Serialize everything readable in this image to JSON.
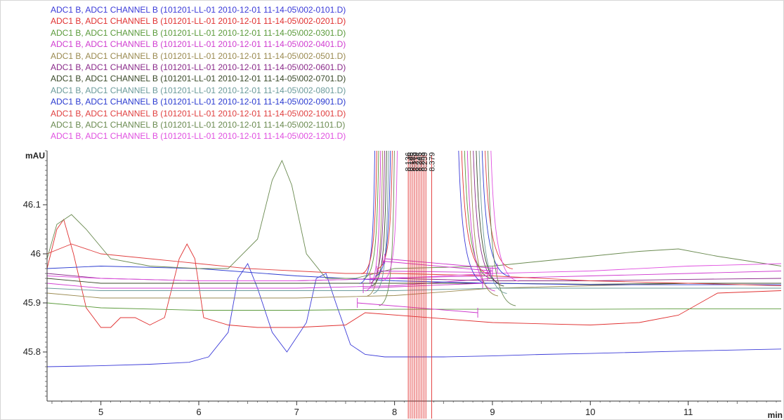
{
  "chart_data": {
    "type": "line",
    "xlabel": "min",
    "ylabel": "mAU",
    "xlim": [
      4.45,
      11.95
    ],
    "ylim": [
      45.7,
      46.21
    ],
    "x_ticks": [
      5,
      6,
      7,
      8,
      9,
      10,
      11
    ],
    "y_ticks": [
      45.8,
      45.9,
      46,
      46.1
    ],
    "grid": false,
    "legend_position": "top-left",
    "series": [
      {
        "name": "ADC1 B, ADC1 CHANNEL B (101201-LL-01 2010-12-01 11-14-05\\002-0101.D)",
        "color": "#3a3ad8",
        "x": [
          4.45,
          5,
          5.5,
          5.9,
          6.1,
          6.3,
          6.4,
          6.5,
          6.6,
          6.75,
          6.9,
          7.1,
          7.2,
          7.3,
          7.4,
          7.55,
          7.7,
          7.9,
          8.5,
          9,
          9.5,
          10,
          11,
          11.95
        ],
        "y": [
          45.77,
          45.772,
          45.775,
          45.779,
          45.79,
          45.84,
          45.95,
          45.98,
          45.93,
          45.84,
          45.8,
          45.86,
          45.95,
          45.96,
          45.9,
          45.815,
          45.795,
          45.79,
          45.79,
          45.792,
          45.795,
          45.797,
          45.802,
          45.806
        ]
      },
      {
        "name": "ADC1 B, ADC1 CHANNEL B (101201-LL-01 2010-12-01 11-14-05\\002-0201.D)",
        "color": "#e03030",
        "x": [
          4.45,
          4.55,
          4.62,
          4.72,
          4.85,
          5,
          5.1,
          5.2,
          5.35,
          5.5,
          5.65,
          5.8,
          5.88,
          5.96,
          6.05,
          6.3,
          6.6,
          7,
          7.5,
          7.7,
          9,
          10,
          10.5,
          10.9,
          11.3,
          11.95
        ],
        "y": [
          45.97,
          46.05,
          46.07,
          46.0,
          45.89,
          45.85,
          45.85,
          45.87,
          45.87,
          45.855,
          45.87,
          45.99,
          46.02,
          45.99,
          45.87,
          45.855,
          45.85,
          45.85,
          45.855,
          45.88,
          45.86,
          45.855,
          45.86,
          45.875,
          45.92,
          45.925
        ]
      },
      {
        "name": "ADC1 B, ADC1 CHANNEL B (101201-LL-01 2010-12-01 11-14-05\\002-0301.D)",
        "color": "#5a9a3a",
        "x": [
          4.45,
          5,
          6,
          7,
          8,
          9,
          10,
          11,
          11.95
        ],
        "y": [
          45.9,
          45.89,
          45.885,
          45.885,
          45.887,
          45.887,
          45.887,
          45.888,
          45.888
        ]
      },
      {
        "name": "ADC1 B, ADC1 CHANNEL B (101201-LL-01 2010-12-01 11-14-05\\002-0401.D)",
        "color": "#d03cd0",
        "x": [
          4.45,
          5,
          6,
          7,
          8,
          9,
          10,
          11,
          11.95
        ],
        "y": [
          45.94,
          45.93,
          45.93,
          45.93,
          45.935,
          45.95,
          45.955,
          45.96,
          45.965
        ]
      },
      {
        "name": "ADC1 B, ADC1 CHANNEL B (101201-LL-01 2010-12-01 11-14-05\\002-0501.D)",
        "color": "#9a8a50",
        "x": [
          4.45,
          5,
          6,
          7,
          8,
          9,
          10,
          11,
          11.95
        ],
        "y": [
          45.92,
          45.91,
          45.91,
          45.91,
          45.915,
          45.93,
          45.935,
          45.94,
          45.94
        ]
      },
      {
        "name": "ADC1 B, ADC1 CHANNEL B (101201-LL-01 2010-12-01 11-14-05\\002-0601.D)",
        "color": "#8a2a8a",
        "x": [
          4.45,
          5,
          6,
          7,
          8,
          9,
          10,
          11,
          11.95
        ],
        "y": [
          45.96,
          45.95,
          45.945,
          45.945,
          45.95,
          45.945,
          45.945,
          45.948,
          45.95
        ]
      },
      {
        "name": "ADC1 B, ADC1 CHANNEL B (101201-LL-01 2010-12-01 11-14-05\\002-0701.D)",
        "color": "#3a4a2a",
        "x": [
          4.45,
          5,
          6,
          7,
          8,
          9,
          10,
          11,
          11.95
        ],
        "y": [
          45.95,
          45.94,
          45.94,
          45.94,
          45.94,
          45.94,
          45.938,
          45.94,
          45.94
        ]
      },
      {
        "name": "ADC1 B, ADC1 CHANNEL B (101201-LL-01 2010-12-01 11-14-05\\002-0801.D)",
        "color": "#6a9a9a",
        "x": [
          4.45,
          5,
          6,
          7,
          8,
          9,
          10,
          11,
          11.95
        ],
        "y": [
          45.93,
          45.925,
          45.925,
          45.925,
          45.925,
          45.93,
          45.93,
          45.93,
          45.93
        ]
      },
      {
        "name": "ADC1 B, ADC1 CHANNEL B (101201-LL-01 2010-12-01 11-14-05\\002-0901.D)",
        "color": "#2a3ad0",
        "x": [
          4.45,
          5,
          6,
          7,
          8,
          9,
          10,
          11,
          11.95
        ],
        "y": [
          45.97,
          45.975,
          45.97,
          45.955,
          45.945,
          45.94,
          45.937,
          45.937,
          45.937
        ]
      },
      {
        "name": "ADC1 B, ADC1 CHANNEL B (101201-LL-01 2010-12-01 11-14-05\\002-1001.D)",
        "color": "#e04040",
        "x": [
          4.45,
          4.7,
          5,
          5.5,
          6,
          6.5,
          7,
          7.5,
          8,
          9,
          10,
          11,
          11.95
        ],
        "y": [
          46.0,
          46.02,
          46.0,
          45.99,
          45.98,
          45.97,
          45.965,
          45.96,
          45.96,
          45.955,
          45.945,
          45.94,
          45.935
        ]
      },
      {
        "name": "ADC1 B, ADC1 CHANNEL B (101201-LL-01 2010-12-01 11-14-05\\002-1101.D)",
        "color": "#6a8a50",
        "x": [
          4.45,
          4.55,
          4.7,
          4.85,
          5.1,
          5.5,
          6,
          6.3,
          6.6,
          6.75,
          6.85,
          6.95,
          7.1,
          7.3,
          7.6,
          8,
          9,
          9.5,
          10,
          10.5,
          10.9,
          11.3,
          11.95
        ],
        "y": [
          45.99,
          46.06,
          46.08,
          46.05,
          45.99,
          45.975,
          45.97,
          45.97,
          46.03,
          46.15,
          46.19,
          46.14,
          46.0,
          45.95,
          45.95,
          45.97,
          45.975,
          45.985,
          45.995,
          46.005,
          46.01,
          45.995,
          45.975
        ]
      },
      {
        "name": "ADC1 B, ADC1 CHANNEL B (101201-LL-01 2010-12-01 11-14-05\\002-1201.D)",
        "color": "#e050e0",
        "x": [
          4.45,
          5,
          6,
          7,
          8,
          9,
          10,
          11,
          11.95
        ],
        "y": [
          45.955,
          45.95,
          45.945,
          45.945,
          45.95,
          45.96,
          45.965,
          45.975,
          45.98
        ]
      }
    ],
    "peak_labels": [
      {
        "x": 8.136,
        "text": "8.136"
      },
      {
        "x": 8.16,
        "text": "8.146"
      },
      {
        "x": 8.185,
        "text": "8.185"
      },
      {
        "x": 8.215,
        "text": "8.219"
      },
      {
        "x": 8.245,
        "text": "8.245"
      },
      {
        "x": 8.275,
        "text": "8.253"
      },
      {
        "x": 8.305,
        "text": "8.259"
      },
      {
        "x": 8.379,
        "text": "8.379"
      }
    ],
    "peak_lines_x": [
      8.14,
      8.16,
      8.18,
      8.2,
      8.22,
      8.24,
      8.26,
      8.28,
      8.3,
      8.32,
      8.379
    ],
    "main_peak": {
      "left_x": [
        7.8,
        7.82,
        7.84,
        7.86,
        7.88,
        7.9,
        7.92,
        7.94,
        7.96,
        7.98,
        8.0,
        8.03
      ],
      "right_x": [
        8.65,
        8.68,
        8.71,
        8.74,
        8.77,
        8.8,
        8.83,
        8.86,
        8.89,
        8.92,
        8.95,
        8.98
      ],
      "floor_y": [
        45.945,
        45.965,
        45.955,
        45.93,
        45.92,
        45.945,
        45.94,
        45.925,
        45.96,
        45.975,
        45.9,
        45.95
      ],
      "colors": [
        "#3a3ad8",
        "#e03030",
        "#5a9a3a",
        "#d03cd0",
        "#9a8a50",
        "#8a2a8a",
        "#3a4a2a",
        "#6a9a9a",
        "#2a3ad0",
        "#e04040",
        "#6a8a50",
        "#e050e0"
      ]
    },
    "baselines": [
      {
        "x1": 7.62,
        "y1": 45.9,
        "x2": 8.85,
        "y2": 45.88,
        "color": "#cc33cc"
      },
      {
        "x1": 7.68,
        "y1": 45.93,
        "x2": 8.9,
        "y2": 45.94,
        "color": "#cc33cc"
      },
      {
        "x1": 7.75,
        "y1": 45.95,
        "x2": 8.95,
        "y2": 45.955,
        "color": "#cc33cc"
      },
      {
        "x1": 7.82,
        "y1": 45.965,
        "x2": 8.98,
        "y2": 45.962,
        "color": "#cc33cc"
      },
      {
        "x1": 7.88,
        "y1": 45.985,
        "x2": 9.0,
        "y2": 45.965,
        "color": "#cc33cc"
      },
      {
        "x1": 7.9,
        "y1": 45.99,
        "x2": 9.05,
        "y2": 45.97,
        "color": "#cc33cc"
      }
    ]
  }
}
